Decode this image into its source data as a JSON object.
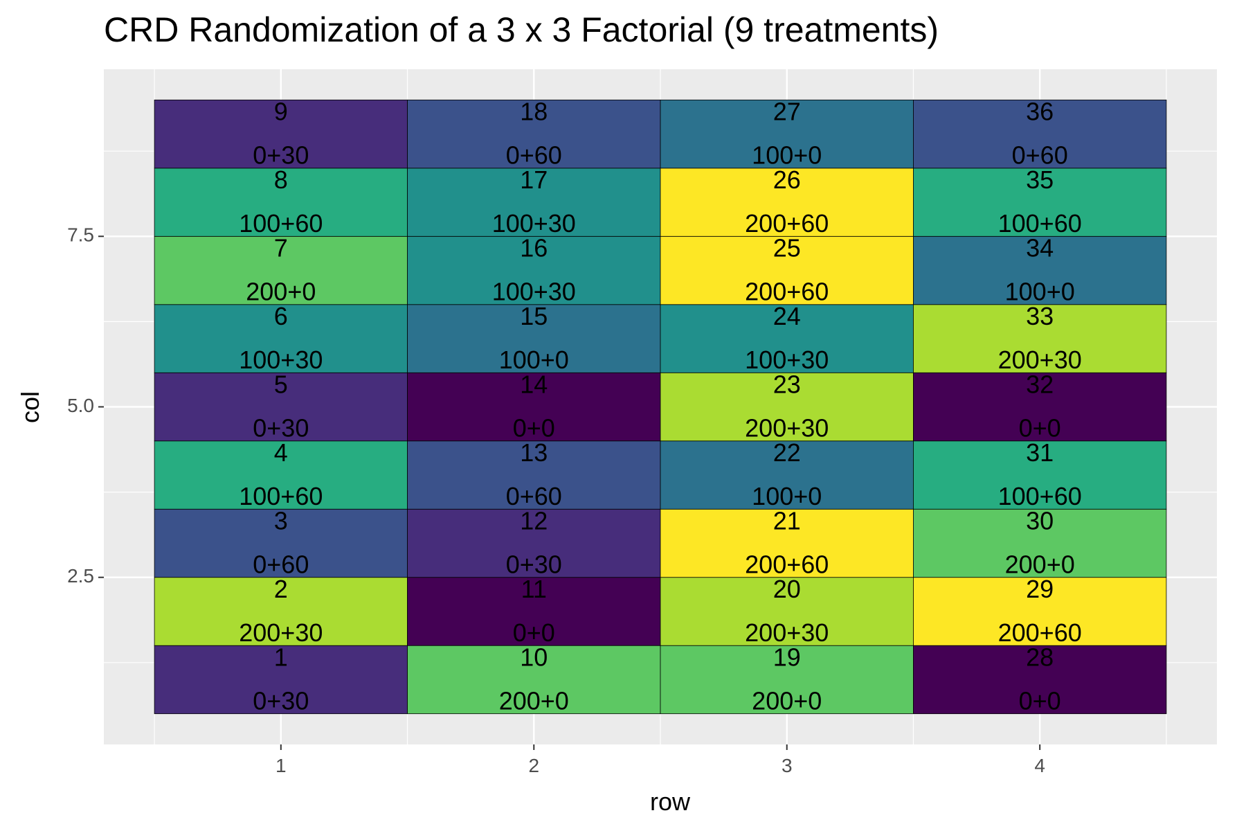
{
  "chart_data": {
    "type": "heatmap",
    "title": "CRD Randomization of a 3 x 3 Factorial (9 treatments)",
    "xlabel": "row",
    "ylabel": "col",
    "x_ticks": [
      "1",
      "2",
      "3",
      "4"
    ],
    "x_tick_values": [
      1,
      2,
      3,
      4
    ],
    "y_ticks": [
      "2.5",
      "5.0",
      "7.5"
    ],
    "y_tick_values": [
      2.5,
      5.0,
      7.5
    ],
    "xlim": [
      0.3,
      4.7
    ],
    "ylim": [
      0.05,
      9.95
    ],
    "grid": true,
    "legend": "none",
    "panel_background": "#EBEBEB",
    "treatment_colors": {
      "0+0": "#440154",
      "0+30": "#472D7B",
      "0+60": "#3B528B",
      "100+0": "#2C728E",
      "100+30": "#21908C",
      "100+60": "#27AD81",
      "200+0": "#5DC863",
      "200+30": "#AADC32",
      "200+60": "#FDE725"
    },
    "cells": [
      {
        "row": 1,
        "col": 1,
        "plot": "1",
        "treatment": "0+30"
      },
      {
        "row": 1,
        "col": 2,
        "plot": "2",
        "treatment": "200+30"
      },
      {
        "row": 1,
        "col": 3,
        "plot": "3",
        "treatment": "0+60"
      },
      {
        "row": 1,
        "col": 4,
        "plot": "4",
        "treatment": "100+60"
      },
      {
        "row": 1,
        "col": 5,
        "plot": "5",
        "treatment": "0+30"
      },
      {
        "row": 1,
        "col": 6,
        "plot": "6",
        "treatment": "100+30"
      },
      {
        "row": 1,
        "col": 7,
        "plot": "7",
        "treatment": "200+0"
      },
      {
        "row": 1,
        "col": 8,
        "plot": "8",
        "treatment": "100+60"
      },
      {
        "row": 1,
        "col": 9,
        "plot": "9",
        "treatment": "0+30"
      },
      {
        "row": 2,
        "col": 1,
        "plot": "10",
        "treatment": "200+0"
      },
      {
        "row": 2,
        "col": 2,
        "plot": "11",
        "treatment": "0+0"
      },
      {
        "row": 2,
        "col": 3,
        "plot": "12",
        "treatment": "0+30"
      },
      {
        "row": 2,
        "col": 4,
        "plot": "13",
        "treatment": "0+60"
      },
      {
        "row": 2,
        "col": 5,
        "plot": "14",
        "treatment": "0+0"
      },
      {
        "row": 2,
        "col": 6,
        "plot": "15",
        "treatment": "100+0"
      },
      {
        "row": 2,
        "col": 7,
        "plot": "16",
        "treatment": "100+30"
      },
      {
        "row": 2,
        "col": 8,
        "plot": "17",
        "treatment": "100+30"
      },
      {
        "row": 2,
        "col": 9,
        "plot": "18",
        "treatment": "0+60"
      },
      {
        "row": 3,
        "col": 1,
        "plot": "19",
        "treatment": "200+0"
      },
      {
        "row": 3,
        "col": 2,
        "plot": "20",
        "treatment": "200+30"
      },
      {
        "row": 3,
        "col": 3,
        "plot": "21",
        "treatment": "200+60"
      },
      {
        "row": 3,
        "col": 4,
        "plot": "22",
        "treatment": "100+0"
      },
      {
        "row": 3,
        "col": 5,
        "plot": "23",
        "treatment": "200+30"
      },
      {
        "row": 3,
        "col": 6,
        "plot": "24",
        "treatment": "100+30"
      },
      {
        "row": 3,
        "col": 7,
        "plot": "25",
        "treatment": "200+60"
      },
      {
        "row": 3,
        "col": 8,
        "plot": "26",
        "treatment": "200+60"
      },
      {
        "row": 3,
        "col": 9,
        "plot": "27",
        "treatment": "100+0"
      },
      {
        "row": 4,
        "col": 1,
        "plot": "28",
        "treatment": "0+0"
      },
      {
        "row": 4,
        "col": 2,
        "plot": "29",
        "treatment": "200+60"
      },
      {
        "row": 4,
        "col": 3,
        "plot": "30",
        "treatment": "200+0"
      },
      {
        "row": 4,
        "col": 4,
        "plot": "31",
        "treatment": "100+60"
      },
      {
        "row": 4,
        "col": 5,
        "plot": "32",
        "treatment": "0+0"
      },
      {
        "row": 4,
        "col": 6,
        "plot": "33",
        "treatment": "200+30"
      },
      {
        "row": 4,
        "col": 7,
        "plot": "34",
        "treatment": "100+0"
      },
      {
        "row": 4,
        "col": 8,
        "plot": "35",
        "treatment": "100+60"
      },
      {
        "row": 4,
        "col": 9,
        "plot": "36",
        "treatment": "0+60"
      }
    ]
  }
}
